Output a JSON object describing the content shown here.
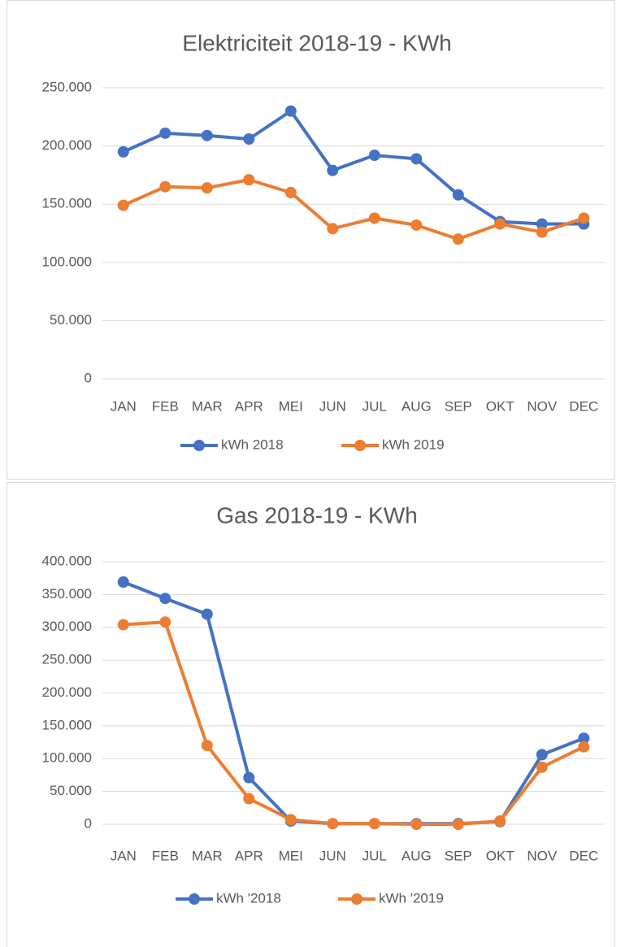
{
  "chart_data": [
    {
      "type": "line",
      "title": "Elektriciteit 2018-19 - KWh",
      "categories": [
        "JAN",
        "FEB",
        "MAR",
        "APR",
        "MEI",
        "JUN",
        "JUL",
        "AUG",
        "SEP",
        "OKT",
        "NOV",
        "DEC"
      ],
      "series": [
        {
          "name": "kWh 2018",
          "color": "#4472c4",
          "values": [
            195000,
            211000,
            209000,
            206000,
            230000,
            179000,
            192000,
            189000,
            158000,
            135000,
            133000,
            133000
          ]
        },
        {
          "name": "kWh 2019",
          "color": "#ed7d31",
          "values": [
            149000,
            165000,
            164000,
            171000,
            160000,
            129000,
            138000,
            132000,
            120000,
            133000,
            126000,
            138000
          ]
        }
      ],
      "ylim": [
        0,
        250000
      ],
      "yticks": [
        0,
        {
          "value": 50000,
          "label": "50.000"
        },
        {
          "value": 100000,
          "label": "100.000"
        },
        {
          "value": 150000,
          "label": "150.000"
        },
        {
          "value": 200000,
          "label": "200.000"
        },
        {
          "value": 250000,
          "label": "250.000"
        }
      ],
      "grid": true,
      "legend": "bottom"
    },
    {
      "type": "line",
      "title": "Gas 2018-19 - KWh",
      "categories": [
        "JAN",
        "FEB",
        "MAR",
        "APR",
        "MEI",
        "JUN",
        "JUL",
        "AUG",
        "SEP",
        "OKT",
        "NOV",
        "DEC"
      ],
      "series": [
        {
          "name": "kWh '2018",
          "color": "#4472c4",
          "values": [
            369000,
            344000,
            320000,
            71000,
            5000,
            1000,
            1000,
            1000,
            1000,
            4000,
            106000,
            131000
          ]
        },
        {
          "name": "kWh '2019",
          "color": "#ed7d31",
          "values": [
            304000,
            308000,
            120000,
            39000,
            7000,
            1000,
            1000,
            0,
            0,
            5000,
            87000,
            118000
          ]
        }
      ],
      "ylim": [
        0,
        400000
      ],
      "yticks": [
        0,
        {
          "value": 50000,
          "label": "50.000"
        },
        {
          "value": 100000,
          "label": "100.000"
        },
        {
          "value": 150000,
          "label": "150.000"
        },
        {
          "value": 200000,
          "label": "200.000"
        },
        {
          "value": 250000,
          "label": "250.000"
        },
        {
          "value": 300000,
          "label": "300.000"
        },
        {
          "value": 350000,
          "label": "350.000"
        },
        {
          "value": 400000,
          "label": "400.000"
        }
      ],
      "grid": true,
      "legend": "bottom"
    }
  ]
}
